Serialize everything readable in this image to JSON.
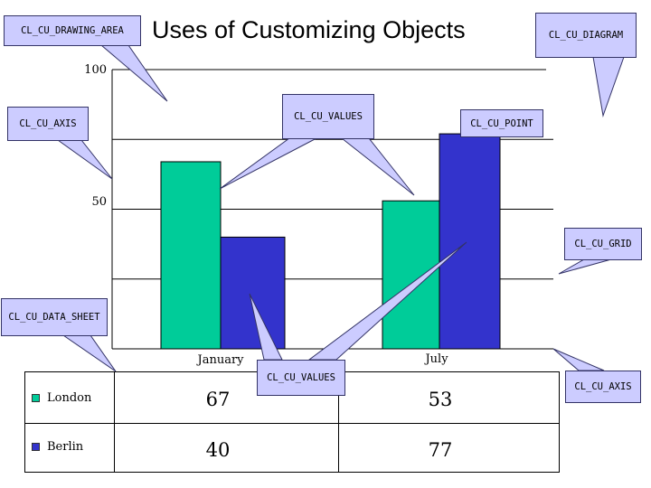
{
  "title": "Uses of Customizing Objects",
  "colors": {
    "london": "#00cc99",
    "berlin": "#3333cc",
    "callout": "#ccccff"
  },
  "callouts": [
    {
      "id": "drawing-area",
      "text": "CL_CU_DRAWING_AREA"
    },
    {
      "id": "diagram",
      "text": "CL_CU_DIAGRAM"
    },
    {
      "id": "axis-left",
      "text": "CL_CU_AXIS"
    },
    {
      "id": "values-top",
      "text": "CL_CU_VALUES"
    },
    {
      "id": "point",
      "text": "CL_CU_POINT"
    },
    {
      "id": "grid",
      "text": "CL_CU_GRID"
    },
    {
      "id": "data-sheet",
      "text": "CL_CU_DATA_SHEET"
    },
    {
      "id": "values-bottom",
      "text": "CL_CU_VALUES"
    },
    {
      "id": "axis-bottom",
      "text": "CL_CU_AXIS"
    }
  ],
  "chart_data": {
    "type": "bar",
    "title": "Uses of Customizing Objects",
    "categories": [
      "January",
      "July"
    ],
    "series": [
      {
        "name": "London",
        "values": [
          67,
          53
        ]
      },
      {
        "name": "Berlin",
        "values": [
          40,
          77
        ]
      }
    ],
    "ylim": [
      0,
      100
    ],
    "yticks": [
      "100",
      "50"
    ],
    "grid": true
  },
  "data_sheet": {
    "rows": [
      {
        "label": "London",
        "values": [
          "67",
          "53"
        ]
      },
      {
        "label": "Berlin",
        "values": [
          "40",
          "77"
        ]
      }
    ]
  }
}
